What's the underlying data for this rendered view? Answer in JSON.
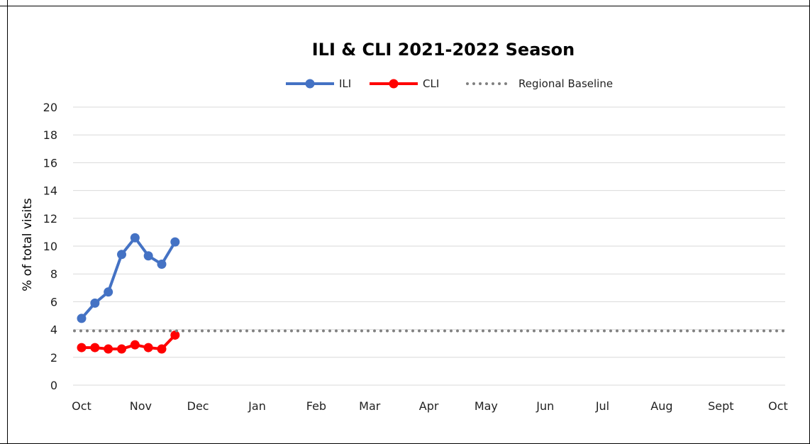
{
  "chart_data": {
    "type": "line",
    "title": "ILI & CLI 2021-2022 Season",
    "xlabel": "",
    "ylabel": "% of total visits",
    "ylim": [
      0,
      20
    ],
    "yticks": [
      0,
      2,
      4,
      6,
      8,
      10,
      12,
      14,
      16,
      18,
      20
    ],
    "x_axis": {
      "type": "date",
      "range": [
        "2021-10-01",
        "2022-10-01"
      ],
      "tick_labels": [
        {
          "label": "Oct",
          "date": "2021-10-01"
        },
        {
          "label": "Nov",
          "date": "2021-11-01"
        },
        {
          "label": "Dec",
          "date": "2021-12-01"
        },
        {
          "label": "Jan",
          "date": "2022-01-01"
        },
        {
          "label": "Feb",
          "date": "2022-02-01"
        },
        {
          "label": "Mar",
          "date": "2022-03-01"
        },
        {
          "label": "Apr",
          "date": "2022-04-01"
        },
        {
          "label": "May",
          "date": "2022-05-01"
        },
        {
          "label": "Jun",
          "date": "2022-06-01"
        },
        {
          "label": "Jul",
          "date": "2022-07-01"
        },
        {
          "label": "Aug",
          "date": "2022-08-01"
        },
        {
          "label": "Sept",
          "date": "2022-09-01"
        },
        {
          "label": "Oct",
          "date": "2022-10-01"
        }
      ]
    },
    "grid": true,
    "legend": {
      "placement": "top-center"
    },
    "series": [
      {
        "name": "ILI",
        "color": "#4472C4",
        "style": "line-markers",
        "x": [
          "2021-10-01",
          "2021-10-08",
          "2021-10-15",
          "2021-10-22",
          "2021-10-29",
          "2021-11-05",
          "2021-11-12",
          "2021-11-19"
        ],
        "values": [
          4.8,
          5.9,
          6.7,
          9.4,
          10.6,
          9.3,
          8.7,
          10.3
        ]
      },
      {
        "name": "CLI",
        "color": "#FF0000",
        "style": "line-markers",
        "x": [
          "2021-10-01",
          "2021-10-08",
          "2021-10-15",
          "2021-10-22",
          "2021-10-29",
          "2021-11-05",
          "2021-11-12",
          "2021-11-19"
        ],
        "values": [
          2.7,
          2.7,
          2.6,
          2.6,
          2.9,
          2.7,
          2.6,
          3.6
        ]
      },
      {
        "name": "Regional Baseline",
        "color": "#808080",
        "style": "dotted",
        "x": [
          "2021-10-01",
          "2022-10-01"
        ],
        "values": [
          3.9,
          3.9
        ]
      }
    ]
  }
}
